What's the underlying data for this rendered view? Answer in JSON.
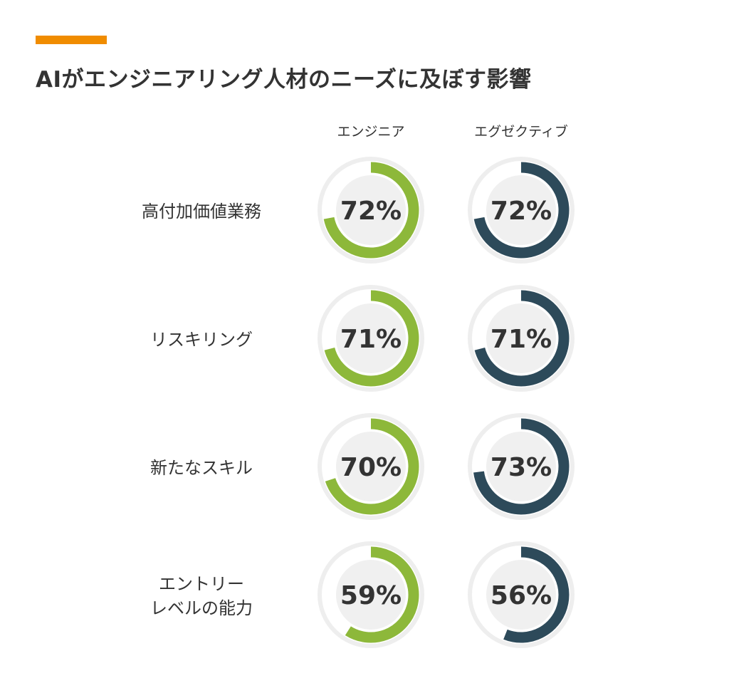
{
  "chart_data": {
    "type": "donut-grid",
    "title": "AIがエンジニアリング人材のニーズに及ぼす影響",
    "columns": [
      "エンジニア",
      "エグゼクティブ"
    ],
    "rows": [
      "高付加価値業務",
      "リスキリング",
      "新たなスキル",
      "エントリー\nレベルの能力"
    ],
    "row_labels_lines": [
      [
        "高付加価値業務"
      ],
      [
        "リスキリング"
      ],
      [
        "新たなスキル"
      ],
      [
        "エントリー",
        "レベルの能力"
      ]
    ],
    "series": [
      {
        "name": "エンジニア",
        "values": [
          72,
          71,
          70,
          59
        ],
        "color": "#8db83a"
      },
      {
        "name": "エグゼクティブ",
        "values": [
          72,
          71,
          73,
          56
        ],
        "color": "#2d4a5a"
      }
    ],
    "unit": "%"
  },
  "colors": {
    "accent": "#f08c00",
    "track": "#eeeeee",
    "inner": "#f0f0f0",
    "text": "#333333"
  }
}
